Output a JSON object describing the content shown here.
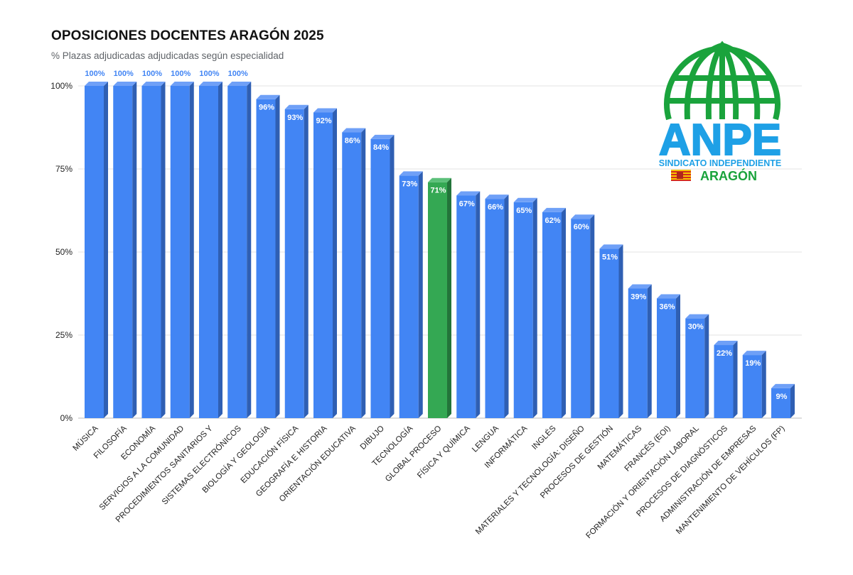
{
  "chart_data": {
    "type": "bar",
    "title": "OPOSICIONES DOCENTES ARAGÓN 2025",
    "subtitle": "% Plazas adjudicadas adjudicadas según especialidad",
    "ylim": [
      0,
      100
    ],
    "yticks": [
      "0%",
      "25%",
      "50%",
      "75%",
      "100%"
    ],
    "grid": true,
    "categories": [
      "MÚSICA",
      "FILOSOFÍA",
      "ECONOMÍA",
      "SERVICIOS A LA COMUNIDAD",
      "PROCEDIMIENTOS SANITARIOS Y",
      "SISTEMAS ELECTRÓNICOS",
      "BIOLOGÍA Y GEOLOGÍA",
      "EDUCACIÓN FÍSICA",
      "GEOGRAFÍA E HISTORIA",
      "ORIENTACIÓN EDUCATIVA",
      "DIBUJO",
      "TECNOLOGÍA",
      "GLOBAL PROCESO",
      "FÍSICA Y QUÍMICA",
      "LENGUA",
      "INFORMÁTICA",
      "INGLÉS",
      "MATERIALES Y TECNOLOGÍA: DISEÑO",
      "PROCESOS DE GESTIÓN",
      "MATEMÁTICAS",
      "FRANCÉS (EOI)",
      "FORMACIÓN Y ORIENTACIÓN LABORAL",
      "PROCESOS DE DIAGNÓSTICOS",
      "ADMINISTRACIÓN DE EMPRESAS",
      "MANTENIMIENTO DE VEHÍCULOS (FP)"
    ],
    "values": [
      100,
      100,
      100,
      100,
      100,
      100,
      96,
      93,
      92,
      86,
      84,
      73,
      71,
      67,
      66,
      65,
      62,
      60,
      51,
      39,
      36,
      30,
      22,
      19,
      9
    ],
    "data_labels": [
      "100%",
      "100%",
      "100%",
      "100%",
      "100%",
      "100%",
      "96%",
      "93%",
      "92%",
      "86%",
      "84%",
      "73%",
      "71%",
      "67%",
      "66%",
      "65%",
      "62%",
      "60%",
      "51%",
      "39%",
      "36%",
      "30%",
      "22%",
      "19%",
      "9%"
    ],
    "highlight": "GLOBAL PROCESO",
    "colors": {
      "bar": "#4285f4",
      "bar_side": "#2f5fb3",
      "bar_top": "#6fa0f7",
      "highlight": "#34a853",
      "highlight_side": "#23743a",
      "highlight_top": "#5cc07a",
      "label_outside": "#4285f4",
      "label_inside": "#ffffff",
      "grid": "#e3e3e3"
    }
  },
  "logo": {
    "name": "ANPE",
    "tagline": "SINDICATO INDEPENDIENTE",
    "region": "ARAGÓN",
    "colors": {
      "green": "#1aa33c",
      "blue": "#1ea0e6",
      "flag_yellow": "#f6c500",
      "flag_red": "#d52b1e"
    }
  }
}
